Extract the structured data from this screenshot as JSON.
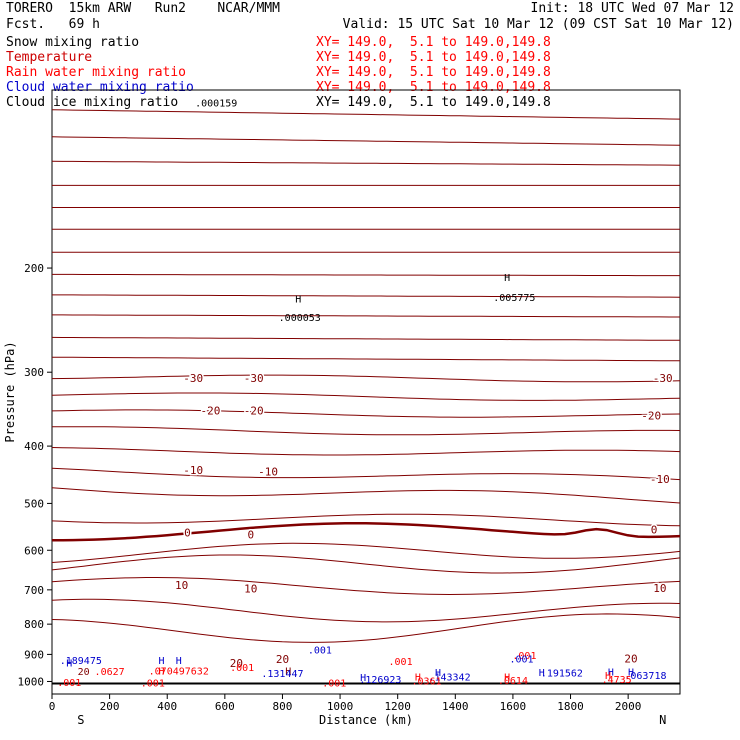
{
  "header": {
    "model": "TORERO  15km ARW   Run2    NCAR/MMM",
    "init": "Init: 18 UTC Wed 07 Mar 12",
    "fcst": "Fcst.   69 h",
    "valid": "Valid: 15 UTC Sat 10 Mar 12 (09 CST Sat 10 Mar 12)"
  },
  "legend": [
    {
      "name": "Snow mixing ratio",
      "color": "#000000",
      "xy": "XY= 149.0,  5.1 to 149.0,149.8",
      "xy_color": "#ff0000"
    },
    {
      "name": "Temperature",
      "color": "#cc0000",
      "xy": "XY= 149.0,  5.1 to 149.0,149.8",
      "xy_color": "#ff0000"
    },
    {
      "name": "Rain water mixing ratio",
      "color": "#ff0000",
      "xy": "XY= 149.0,  5.1 to 149.0,149.8",
      "xy_color": "#ff0000"
    },
    {
      "name": "Cloud water mixing ratio",
      "color": "#0000cc",
      "xy": "XY= 149.0,  5.1 to 149.0,149.8",
      "xy_color": "#ff0000"
    },
    {
      "name": "Cloud ice mixing ratio",
      "color": "#000000",
      "xy": "XY= 149.0,  5.1 to 149.0,149.8",
      "xy_color": "#000000"
    }
  ],
  "colors": {
    "temperature": "#800000",
    "rain": "#ff0000",
    "cloud_water": "#0000cc",
    "ice": "#000000"
  },
  "chart_data": {
    "type": "line",
    "xlabel": "Distance (km)",
    "ylabel": "Pressure (hPa)",
    "xlim": [
      0,
      2180
    ],
    "ylim": [
      1050,
      100
    ],
    "y_scale": "log",
    "x_ticks": [
      0,
      200,
      400,
      600,
      800,
      1000,
      1200,
      1400,
      1600,
      1800,
      2000
    ],
    "y_ticks": [
      200,
      300,
      400,
      500,
      600,
      700,
      800,
      900,
      1000
    ],
    "x_ends": {
      "left": "S",
      "right": "N"
    },
    "temperature_labels": [
      {
        "text": "-30",
        "x": 490,
        "p": 307
      },
      {
        "text": "-30",
        "x": 700,
        "p": 307
      },
      {
        "text": "-30",
        "x": 2120,
        "p": 307
      },
      {
        "text": "-20",
        "x": 550,
        "p": 348
      },
      {
        "text": "-20",
        "x": 700,
        "p": 348
      },
      {
        "text": "-20",
        "x": 2080,
        "p": 355
      },
      {
        "text": "-10",
        "x": 490,
        "p": 439
      },
      {
        "text": "-10",
        "x": 750,
        "p": 442
      },
      {
        "text": "-10",
        "x": 2110,
        "p": 455
      },
      {
        "text": "0",
        "x": 470,
        "p": 560
      },
      {
        "text": "0",
        "x": 690,
        "p": 564
      },
      {
        "text": "0",
        "x": 2090,
        "p": 553
      },
      {
        "text": "10",
        "x": 450,
        "p": 687
      },
      {
        "text": "10",
        "x": 690,
        "p": 696
      },
      {
        "text": "10",
        "x": 2110,
        "p": 695
      },
      {
        "text": "20",
        "x": 800,
        "p": 916
      },
      {
        "text": "20",
        "x": 640,
        "p": 930
      },
      {
        "text": "20",
        "x": 2010,
        "p": 915
      }
    ],
    "annotations": [
      {
        "text": ".000159",
        "x": 570,
        "p": 105,
        "color": "#000000"
      },
      {
        "text": "H",
        "x": 855,
        "p": 225,
        "color": "#000000"
      },
      {
        "text": ".000053",
        "x": 860,
        "p": 242,
        "color": "#000000"
      },
      {
        "text": "H",
        "x": 1580,
        "p": 207,
        "color": "#000000"
      },
      {
        "text": ".005775",
        "x": 1605,
        "p": 224,
        "color": "#000000"
      },
      {
        "text": ".001",
        "x": 930,
        "p": 883,
        "color": "#0000cc"
      },
      {
        "text": ".001",
        "x": 1640,
        "p": 902,
        "color": "#ff0000"
      },
      {
        "text": ".001",
        "x": 1630,
        "p": 915,
        "color": "#0000cc"
      },
      {
        "text": ".001",
        "x": 1210,
        "p": 923,
        "color": "#ff0000"
      },
      {
        "text": ".001",
        "x": 660,
        "p": 946,
        "color": "#ff0000"
      },
      {
        "text": ".189475",
        "x": 100,
        "p": 920,
        "color": "#0000cc"
      },
      {
        "text": "H",
        "x": 60,
        "p": 928,
        "color": "#0000cc"
      },
      {
        "text": "H",
        "x": 380,
        "p": 920,
        "color": "#0000cc"
      },
      {
        "text": "H",
        "x": 440,
        "p": 920,
        "color": "#0000cc"
      },
      {
        "text": ".0627",
        "x": 200,
        "p": 960,
        "color": "#ff0000"
      },
      {
        "text": ".070497632",
        "x": 440,
        "p": 958,
        "color": "#ff0000"
      },
      {
        "text": "20",
        "x": 110,
        "p": 960,
        "color": "#800000"
      },
      {
        "text": "H",
        "x": 380,
        "p": 958,
        "color": "#ff0000"
      },
      {
        "text": "H",
        "x": 820,
        "p": 958,
        "color": "#800000"
      },
      {
        "text": ".131447",
        "x": 800,
        "p": 968,
        "color": "#0000cc"
      },
      {
        "text": "H",
        "x": 1080,
        "p": 983,
        "color": "#0000cc"
      },
      {
        "text": ".126923",
        "x": 1140,
        "p": 990,
        "color": "#0000cc"
      },
      {
        "text": "H",
        "x": 1340,
        "p": 963,
        "color": "#0000cc"
      },
      {
        "text": ".143342",
        "x": 1380,
        "p": 980,
        "color": "#0000cc"
      },
      {
        "text": "H",
        "x": 1270,
        "p": 980,
        "color": "#ff0000"
      },
      {
        "text": ".0361",
        "x": 1300,
        "p": 996,
        "color": "#ff0000"
      },
      {
        "text": "H",
        "x": 1580,
        "p": 980,
        "color": "#ff0000"
      },
      {
        "text": ".0614",
        "x": 1600,
        "p": 994,
        "color": "#ff0000"
      },
      {
        "text": "H",
        "x": 1700,
        "p": 963,
        "color": "#0000cc"
      },
      {
        "text": ".191562",
        "x": 1770,
        "p": 965,
        "color": "#0000cc"
      },
      {
        "text": "H",
        "x": 1940,
        "p": 962,
        "color": "#0000cc"
      },
      {
        "text": "H",
        "x": 2010,
        "p": 962,
        "color": "#0000cc"
      },
      {
        "text": ".063718",
        "x": 2060,
        "p": 975,
        "color": "#0000cc"
      },
      {
        "text": "H",
        "x": 1930,
        "p": 975,
        "color": "#ff0000"
      },
      {
        "text": ".4735",
        "x": 1960,
        "p": 990,
        "color": "#ff0000"
      },
      {
        "text": ".001",
        "x": 60,
        "p": 1003,
        "color": "#ff0000"
      },
      {
        "text": ".001",
        "x": 350,
        "p": 1005,
        "color": "#ff0000"
      },
      {
        "text": ".001",
        "x": 980,
        "p": 1005,
        "color": "#ff0000"
      }
    ],
    "isotherms": [
      {
        "p_left": 108,
        "p_right": 112,
        "wave": 0
      },
      {
        "p_left": 120,
        "p_right": 124,
        "wave": 0
      },
      {
        "p_left": 132,
        "p_right": 134,
        "wave": 0
      },
      {
        "p_left": 145,
        "p_right": 145,
        "wave": 0
      },
      {
        "p_left": 158,
        "p_right": 158,
        "wave": 0
      },
      {
        "p_left": 172,
        "p_right": 172,
        "wave": 0
      },
      {
        "p_left": 188,
        "p_right": 188,
        "wave": 0
      },
      {
        "p_left": 205,
        "p_right": 206,
        "wave": 0
      },
      {
        "p_left": 222,
        "p_right": 224,
        "wave": 0
      },
      {
        "p_left": 240,
        "p_right": 242,
        "wave": 0
      },
      {
        "p_left": 262,
        "p_right": 265,
        "wave": 0
      },
      {
        "p_left": 283,
        "p_right": 287,
        "wave": 0
      },
      {
        "p_left": 305,
        "p_right": 309,
        "wave": 0.01
      },
      {
        "p_left": 327,
        "p_right": 333,
        "wave": 0.01
      },
      {
        "p_left": 350,
        "p_right": 356,
        "wave": 0.01
      },
      {
        "p_left": 375,
        "p_right": 381,
        "wave": 0.012
      },
      {
        "p_left": 407,
        "p_right": 412,
        "wave": 0.012
      },
      {
        "p_left": 440,
        "p_right": 456,
        "wave": 0.015
      },
      {
        "p_left": 470,
        "p_right": 493,
        "wave": 0.02
      },
      {
        "p_left": 528,
        "p_right": 535,
        "wave": 0.02
      },
      {
        "p_left": 560,
        "p_right": 553,
        "wave": 0.03,
        "bold": true
      },
      {
        "p_left": 611,
        "p_right": 595,
        "wave": 0.035
      },
      {
        "p_left": 640,
        "p_right": 626,
        "wave": 0.04
      },
      {
        "p_left": 686,
        "p_right": 695,
        "wave": 0.03
      },
      {
        "p_left": 755,
        "p_right": 768,
        "wave": 0.04
      },
      {
        "p_left": 825,
        "p_right": 806,
        "wave": 0.05
      }
    ]
  }
}
